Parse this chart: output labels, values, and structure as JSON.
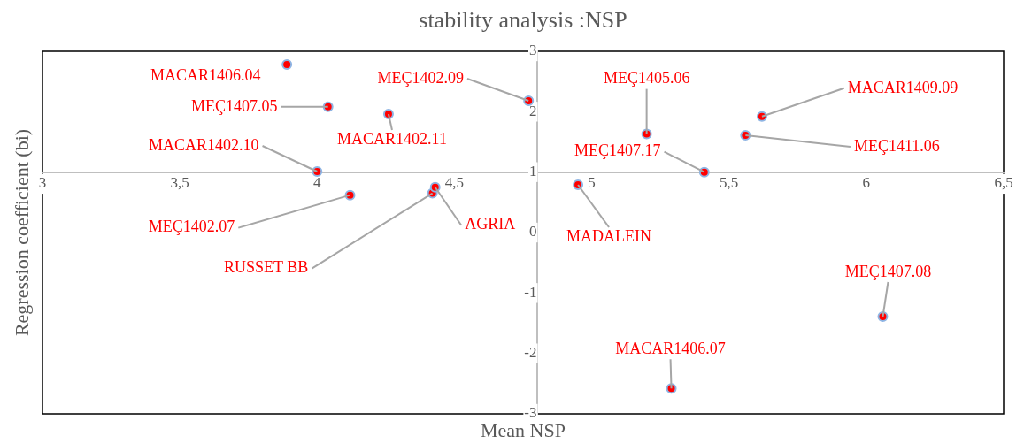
{
  "chart_data": {
    "type": "scatter",
    "title": "stability analysis :NSP",
    "xlabel": "Mean NSP",
    "ylabel": "Regression coefficient (bi)",
    "series": [
      {
        "color": "#ff0000",
        "x": [
          3.89,
          4.04,
          4.26,
          4.0,
          4.12,
          4.42,
          4.43,
          4.77,
          4.95,
          5.2,
          5.41,
          5.62,
          5.56,
          6.06,
          5.29
        ],
        "values": [
          2.78,
          2.08,
          1.96,
          1.01,
          0.62,
          0.65,
          0.75,
          2.18,
          0.79,
          1.63,
          1.0,
          1.92,
          1.61,
          -1.39,
          -2.58
        ]
      }
    ],
    "annotations": [
      {
        "text": "MACAR1406.04",
        "x": 3.89,
        "y": 2.78
      },
      {
        "text": "MEÇ1407.05",
        "x": 4.04,
        "y": 2.08
      },
      {
        "text": "MACAR1402.11",
        "x": 4.26,
        "y": 1.96
      },
      {
        "text": "MACAR1402.10",
        "x": 4.0,
        "y": 1.01
      },
      {
        "text": "MEÇ1402.07",
        "x": 4.12,
        "y": 0.62
      },
      {
        "text": "RUSSET BB",
        "x": 4.42,
        "y": 0.65
      },
      {
        "text": "AGRIA",
        "x": 4.43,
        "y": 0.75
      },
      {
        "text": "MEÇ1402.09",
        "x": 4.77,
        "y": 2.18
      },
      {
        "text": "MADALEIN",
        "x": 4.95,
        "y": 0.79
      },
      {
        "text": "MEÇ1405.06",
        "x": 5.2,
        "y": 1.63
      },
      {
        "text": "MEÇ1407.17",
        "x": 5.41,
        "y": 1.0
      },
      {
        "text": "MACAR1409.09",
        "x": 5.62,
        "y": 1.92
      },
      {
        "text": "MEÇ1411.06",
        "x": 5.56,
        "y": 1.61
      },
      {
        "text": "MEÇ1407.08",
        "x": 6.06,
        "y": -1.39
      },
      {
        "text": "MACAR1406.07",
        "x": 5.29,
        "y": -2.58
      }
    ],
    "xlim": [
      3,
      6.5
    ],
    "xticks": [
      3,
      {
        "value": 3.5,
        "label": "3,5"
      },
      4,
      {
        "value": 4.5,
        "label": "4,5"
      },
      5,
      {
        "value": 5.5,
        "label": "5,5"
      },
      6,
      {
        "value": 6.5,
        "label": "6,5"
      }
    ],
    "ylim": [
      -3,
      3
    ],
    "yticks": [
      -3,
      -2,
      -1,
      0,
      1,
      2,
      3
    ],
    "marker": "circle",
    "grid": false,
    "legend": false
  }
}
